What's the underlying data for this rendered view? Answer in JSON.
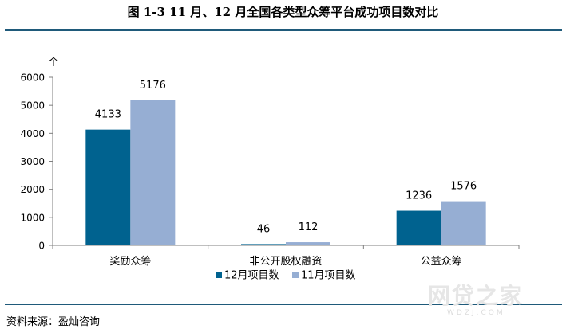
{
  "title": "图 1-3    11 月、12 月全国各类型众筹平台成功项目数对比",
  "source": "资料来源：盈灿咨询",
  "watermark": "网贷之家",
  "watermark_sub": "WDZJ.COM",
  "colors": {
    "rule": "#1f5a7a",
    "series_dec": "#00628f",
    "series_nov": "#96aed3",
    "axis": "#7f7f7f"
  },
  "chart_data": {
    "type": "bar",
    "title": "",
    "xlabel": "",
    "ylabel": "个",
    "ylim": [
      0,
      6000
    ],
    "yticks": [
      0,
      1000,
      2000,
      3000,
      4000,
      5000,
      6000
    ],
    "grid": false,
    "legend_position": "bottom",
    "categories": [
      "奖励众筹",
      "非公开股权融资",
      "公益众筹"
    ],
    "series": [
      {
        "name": "12月项目数",
        "values": [
          4133,
          46,
          1236
        ],
        "color": "#00628f"
      },
      {
        "name": "11月项目数",
        "values": [
          5176,
          112,
          1576
        ],
        "color": "#96aed3"
      }
    ]
  }
}
